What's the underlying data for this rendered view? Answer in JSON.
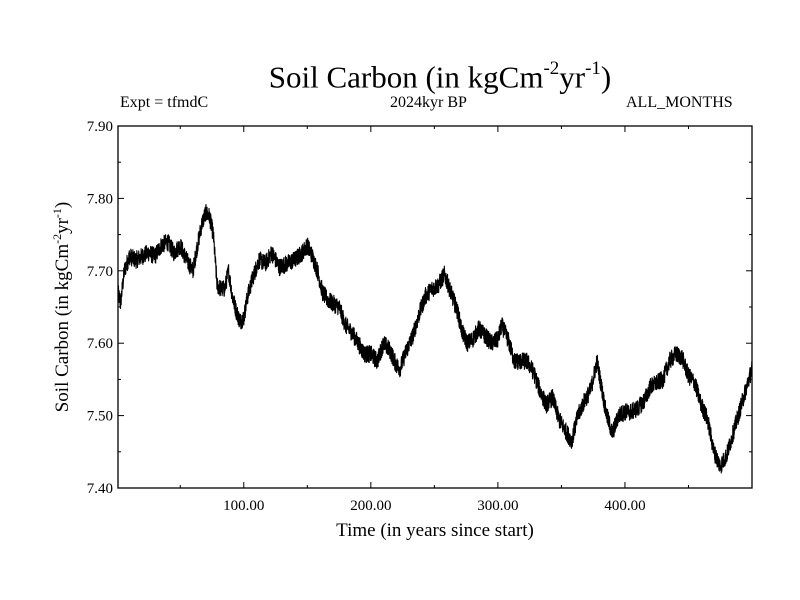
{
  "chart_data": {
    "type": "line",
    "title_main": "Soil Carbon (in kgCm",
    "title_exp1": "-2",
    "title_mid": "yr",
    "title_exp2": "-1",
    "title_end": ")",
    "expt_label": "Expt = tfmdC",
    "period_label": "2024kyr BP",
    "months_label": "ALL_MONTHS",
    "xlabel": "Time (in years since start)",
    "ylabel": "Soil Carbon (in kgCm-2yr-1)",
    "xlim": [
      1,
      500
    ],
    "ylim": [
      7.4,
      7.9
    ],
    "x_ticks": [
      100,
      200,
      300,
      400
    ],
    "x_tick_labels": [
      "100.00",
      "200.00",
      "300.00",
      "400.00"
    ],
    "y_ticks": [
      7.4,
      7.5,
      7.6,
      7.7,
      7.8,
      7.9
    ],
    "y_tick_labels": [
      "7.40",
      "7.50",
      "7.60",
      "7.70",
      "7.80",
      "7.90"
    ],
    "noise_amplitude": 0.012,
    "series": [
      {
        "name": "Soil Carbon",
        "color": "#000000",
        "x": [
          1,
          3,
          6,
          10,
          15,
          20,
          25,
          30,
          35,
          40,
          45,
          50,
          55,
          60,
          63,
          67,
          70,
          73,
          76,
          79,
          82,
          85,
          88,
          91,
          94,
          97,
          100,
          103,
          107,
          112,
          117,
          122,
          128,
          134,
          140,
          146,
          150,
          154,
          158,
          162,
          166,
          170,
          175,
          180,
          185,
          190,
          195,
          200,
          205,
          210,
          215,
          220,
          223,
          228,
          233,
          238,
          243,
          248,
          253,
          258,
          261,
          265,
          268,
          272,
          276,
          280,
          285,
          290,
          295,
          300,
          303,
          308,
          313,
          318,
          323,
          328,
          333,
          338,
          343,
          348,
          353,
          358,
          363,
          368,
          373,
          378,
          381,
          385,
          390,
          395,
          400,
          405,
          410,
          415,
          420,
          425,
          430,
          435,
          440,
          445,
          450,
          455,
          460,
          465,
          470,
          475,
          480,
          485,
          490,
          495,
          500
        ],
        "y": [
          7.67,
          7.655,
          7.7,
          7.72,
          7.715,
          7.72,
          7.725,
          7.72,
          7.735,
          7.74,
          7.725,
          7.735,
          7.715,
          7.7,
          7.73,
          7.765,
          7.78,
          7.775,
          7.75,
          7.68,
          7.675,
          7.675,
          7.7,
          7.665,
          7.645,
          7.63,
          7.635,
          7.665,
          7.69,
          7.715,
          7.71,
          7.725,
          7.705,
          7.71,
          7.715,
          7.725,
          7.735,
          7.72,
          7.7,
          7.67,
          7.66,
          7.655,
          7.65,
          7.625,
          7.615,
          7.6,
          7.585,
          7.585,
          7.575,
          7.6,
          7.59,
          7.57,
          7.565,
          7.59,
          7.61,
          7.64,
          7.665,
          7.675,
          7.68,
          7.695,
          7.68,
          7.66,
          7.645,
          7.615,
          7.6,
          7.605,
          7.62,
          7.61,
          7.6,
          7.605,
          7.625,
          7.605,
          7.575,
          7.575,
          7.575,
          7.56,
          7.535,
          7.515,
          7.525,
          7.495,
          7.48,
          7.465,
          7.5,
          7.52,
          7.535,
          7.575,
          7.545,
          7.505,
          7.475,
          7.5,
          7.505,
          7.505,
          7.51,
          7.52,
          7.54,
          7.545,
          7.55,
          7.575,
          7.585,
          7.58,
          7.555,
          7.545,
          7.515,
          7.495,
          7.45,
          7.43,
          7.445,
          7.475,
          7.505,
          7.535,
          7.565
        ]
      }
    ]
  }
}
